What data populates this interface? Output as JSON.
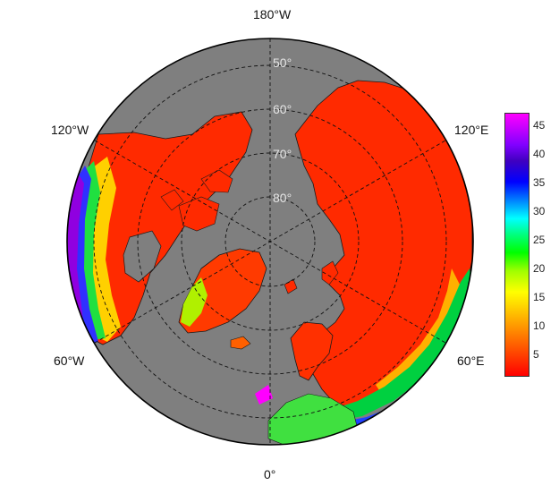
{
  "map": {
    "longitude_labels": {
      "top": "180°W",
      "upper_left": "120°W",
      "upper_right": "120°E",
      "lower_left": "60°W",
      "lower_right": "60°E",
      "bottom": "0°"
    },
    "latitude_labels": [
      "50°",
      "60°",
      "70°",
      "80°"
    ],
    "ocean_color": "#7f7f7f",
    "gridline_style": "dashed"
  },
  "colorbar": {
    "ticks": [
      "5",
      "10",
      "15",
      "20",
      "25",
      "30",
      "35",
      "40",
      "45"
    ],
    "min": 0,
    "max": 47,
    "colors": [
      "#ff0000",
      "#ff8000",
      "#ffff00",
      "#00ff00",
      "#00ffff",
      "#0000ff",
      "#8000ff",
      "#ff00ff"
    ]
  }
}
